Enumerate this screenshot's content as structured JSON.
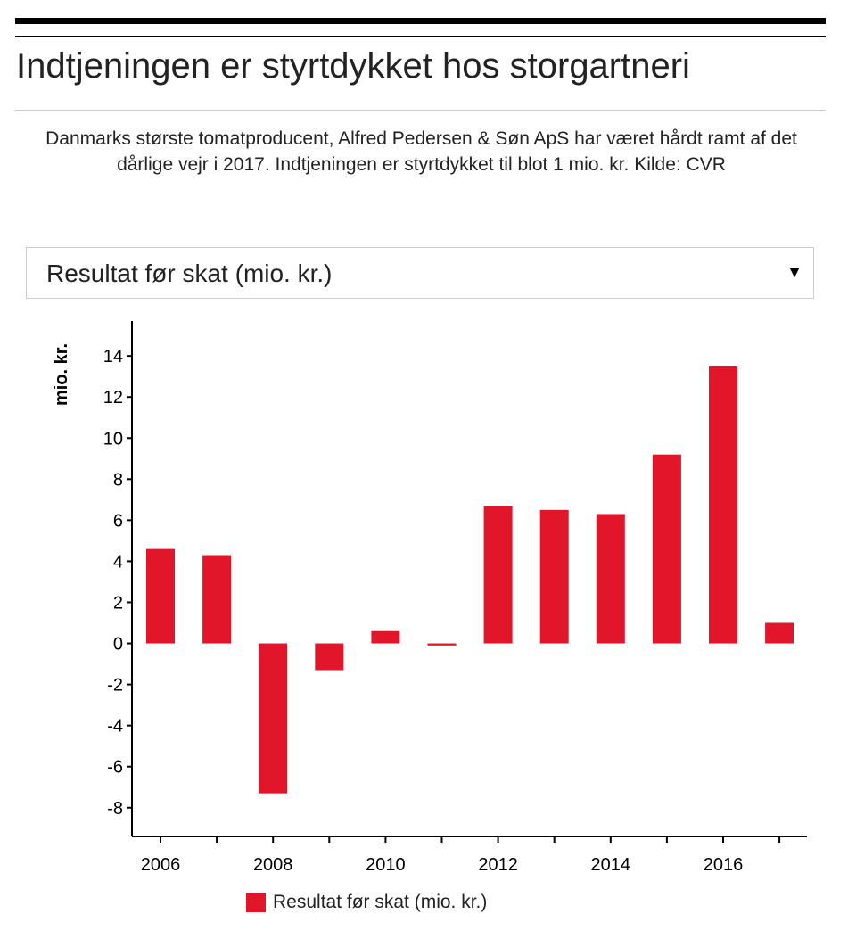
{
  "title": "Indtjeningen er styrtdykket hos storgartneri",
  "subtitle": "Danmarks største tomatproducent, Alfred Pedersen & Søn ApS har været hårdt ramt af det dårlige vejr i 2017. Indtjeningen er styrtdykket til blot 1 mio. kr. Kilde: CVR",
  "dropdown": {
    "selected": "Resultat før skat (mio. kr.)",
    "icon": "triangle-down-icon",
    "arrow": "▼"
  },
  "chart_data": {
    "type": "bar",
    "title": "",
    "xlabel": "",
    "ylabel": "mio. kr.",
    "categories": [
      2006,
      2007,
      2008,
      2009,
      2010,
      2011,
      2012,
      2013,
      2014,
      2015,
      2016,
      2017
    ],
    "series": [
      {
        "name": "Resultat før skat (mio. kr.)",
        "color": "#e1162b",
        "values": [
          4.6,
          4.3,
          -7.3,
          -1.3,
          0.6,
          -0.1,
          6.7,
          6.5,
          6.3,
          9.2,
          13.5,
          1.0
        ]
      }
    ],
    "ylim": [
      -9.4,
      15.7
    ],
    "yticks": [
      -8,
      -6,
      -4,
      -2,
      0,
      2,
      4,
      6,
      8,
      10,
      12,
      14
    ],
    "xticks": [
      2006,
      2008,
      2010,
      2012,
      2014,
      2016
    ],
    "grid": false,
    "legend": "bottom"
  }
}
